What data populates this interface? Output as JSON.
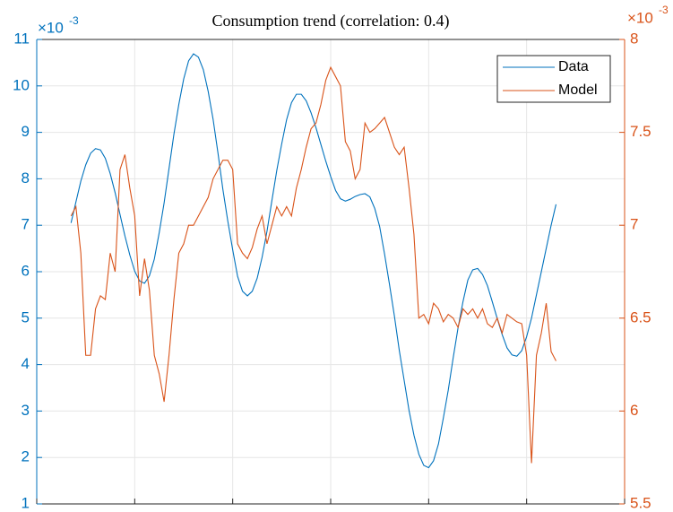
{
  "chart_data": {
    "type": "line",
    "title": "Consumption trend (correlation: 0.4)",
    "y_multiplier": "×10",
    "y_exponent": "-3",
    "y2_multiplier": "×10",
    "y2_exponent": "-3",
    "xlim": [
      0,
      120
    ],
    "xticks": [
      0,
      20,
      40,
      60,
      80,
      100,
      120
    ],
    "ylim": [
      1,
      11
    ],
    "yticks": [
      1,
      2,
      3,
      4,
      5,
      6,
      7,
      8,
      9,
      10,
      11
    ],
    "y2lim": [
      5.5,
      8
    ],
    "y2ticks": [
      5.5,
      6,
      6.5,
      7,
      7.5,
      8
    ],
    "grid": true,
    "legend": "upper right",
    "x": [
      7,
      8,
      9,
      10,
      11,
      12,
      13,
      14,
      15,
      16,
      17,
      18,
      19,
      20,
      21,
      22,
      23,
      24,
      25,
      26,
      27,
      28,
      29,
      30,
      31,
      32,
      33,
      34,
      35,
      36,
      37,
      38,
      39,
      40,
      41,
      42,
      43,
      44,
      45,
      46,
      47,
      48,
      49,
      50,
      51,
      52,
      53,
      54,
      55,
      56,
      57,
      58,
      59,
      60,
      61,
      62,
      63,
      64,
      65,
      66,
      67,
      68,
      69,
      70,
      71,
      72,
      73,
      74,
      75,
      76,
      77,
      78,
      79,
      80,
      81,
      82,
      83,
      84,
      85,
      86,
      87,
      88,
      89,
      90,
      91,
      92,
      93,
      94,
      95,
      96,
      97,
      98,
      99,
      100,
      101,
      102,
      103,
      104,
      105,
      106
    ],
    "series": [
      {
        "name": "Data",
        "color": "#0072BD",
        "axis": "y",
        "values": [
          7.05,
          7.5,
          7.95,
          8.3,
          8.55,
          8.65,
          8.62,
          8.44,
          8.11,
          7.7,
          7.23,
          6.77,
          6.36,
          6.01,
          5.8,
          5.75,
          5.91,
          6.27,
          6.84,
          7.48,
          8.22,
          8.96,
          9.6,
          10.15,
          10.54,
          10.69,
          10.62,
          10.35,
          9.88,
          9.28,
          8.55,
          7.77,
          7.09,
          6.47,
          5.9,
          5.58,
          5.48,
          5.58,
          5.86,
          6.31,
          6.87,
          7.53,
          8.18,
          8.75,
          9.27,
          9.64,
          9.82,
          9.82,
          9.68,
          9.42,
          9.1,
          8.74,
          8.38,
          8.05,
          7.75,
          7.57,
          7.52,
          7.56,
          7.62,
          7.66,
          7.68,
          7.61,
          7.36,
          6.97,
          6.38,
          5.73,
          5.05,
          4.31,
          3.66,
          3.01,
          2.48,
          2.07,
          1.83,
          1.78,
          1.93,
          2.29,
          2.85,
          3.45,
          4.14,
          4.79,
          5.35,
          5.82,
          6.04,
          6.07,
          5.94,
          5.7,
          5.35,
          4.99,
          4.65,
          4.36,
          4.21,
          4.18,
          4.3,
          4.6,
          5.0,
          5.5,
          6.0,
          6.5,
          7.0,
          7.45
        ]
      },
      {
        "name": "Model",
        "color": "#D95319",
        "axis": "y2",
        "values": [
          7.05,
          7.1,
          6.85,
          6.3,
          6.3,
          6.55,
          6.62,
          6.6,
          6.85,
          6.75,
          7.3,
          7.38,
          7.2,
          7.05,
          6.62,
          6.82,
          6.65,
          6.3,
          6.2,
          6.05,
          6.3,
          6.6,
          6.85,
          6.9,
          7.0,
          7.0,
          7.05,
          7.1,
          7.15,
          7.25,
          7.3,
          7.35,
          7.35,
          7.3,
          6.9,
          6.85,
          6.82,
          6.88,
          6.98,
          7.05,
          6.9,
          7.0,
          7.1,
          7.05,
          7.1,
          7.05,
          7.2,
          7.3,
          7.42,
          7.52,
          7.55,
          7.65,
          7.78,
          7.85,
          7.8,
          7.75,
          7.45,
          7.4,
          7.25,
          7.3,
          7.55,
          7.5,
          7.52,
          7.55,
          7.58,
          7.5,
          7.42,
          7.38,
          7.42,
          7.2,
          6.95,
          6.5,
          6.52,
          6.47,
          6.58,
          6.55,
          6.48,
          6.52,
          6.5,
          6.45,
          6.55,
          6.52,
          6.55,
          6.5,
          6.55,
          6.47,
          6.45,
          6.5,
          6.42,
          6.52,
          6.5,
          6.48,
          6.47,
          6.3,
          5.72,
          6.3,
          6.42,
          6.58,
          6.32,
          6.27
        ]
      }
    ]
  }
}
